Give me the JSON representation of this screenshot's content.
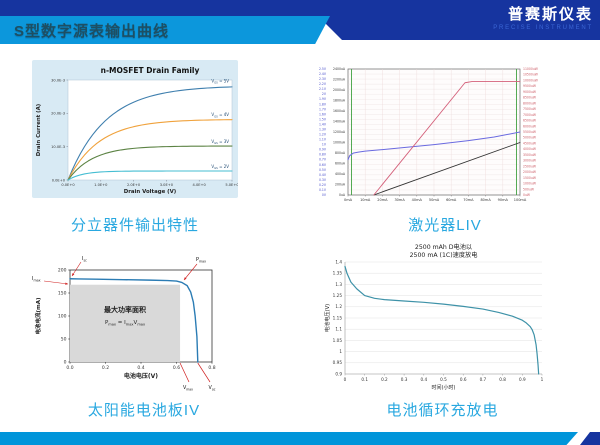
{
  "header": {
    "title": "S型数字源表输出曲线",
    "brand": "普赛斯仪表",
    "brand_sub": "PRECISE INSTRUMENT",
    "colors": {
      "navy": "#16349f",
      "band_blue": "#0c97dc",
      "footer_blue": "#0095da",
      "caption_blue": "#29a8e0"
    }
  },
  "captions": {
    "mosfet": "分立器件输出特性",
    "liv": "激光器LIV",
    "solar": "太阳能电池板IV",
    "battery": "电池循环充放电"
  },
  "chart_data": [
    {
      "id": "mosfet",
      "type": "line",
      "title": "n-MOSFET Drain Family",
      "xlabel": "Drain Voltage (V)",
      "ylabel": "Drain Current (A)",
      "xlim": [
        0,
        5
      ],
      "ylim": [
        0,
        0.03
      ],
      "bg": "#d8eaf4",
      "xticks": [
        [
          0,
          "0.0E+0"
        ],
        [
          1,
          "1.0E+0"
        ],
        [
          2,
          "2.0E+0"
        ],
        [
          3,
          "3.0E+0"
        ],
        [
          4,
          "4.0E+0"
        ],
        [
          5,
          "5.0E+0"
        ]
      ],
      "yticks": [
        [
          0,
          "0.0E+0"
        ],
        [
          0.01,
          "10.0E-3"
        ],
        [
          0.02,
          "20.0E-3"
        ],
        [
          0.03,
          "30.0E-3"
        ]
      ],
      "series": [
        {
          "label": [
            {
              "t": "V",
              "s": "GS"
            },
            {
              "t": " = 5V"
            }
          ],
          "color": "#3f7fae",
          "isat": 0.0283,
          "k": 1.15
        },
        {
          "label": [
            {
              "t": "V",
              "s": "GS"
            },
            {
              "t": " = 4V"
            }
          ],
          "color": "#f0a23c",
          "isat": 0.0182,
          "k": 0.95
        },
        {
          "label": [
            {
              "t": "V",
              "s": "GS"
            },
            {
              "t": " = 3V"
            }
          ],
          "color": "#5c8344",
          "isat": 0.0102,
          "k": 0.75
        },
        {
          "label": [
            {
              "t": "V",
              "s": "GS"
            },
            {
              "t": " = 2V"
            }
          ],
          "color": "#45bdd2",
          "isat": 0.0027,
          "k": 0.45
        }
      ],
      "label_color": "#1f4a73"
    },
    {
      "id": "liv",
      "type": "line",
      "xlim": [
        0,
        100
      ],
      "x_labels": [
        "0mA",
        "10mA",
        "20mA",
        "30mA",
        "40mA",
        "50mA",
        "60mA",
        "70mA",
        "80mA",
        "90mA",
        "100mA"
      ],
      "axes": {
        "voltage": {
          "range": [
            0,
            2.5
          ],
          "color": "#4c52cc",
          "labels": [
            "0V",
            "0.1V",
            "0.2V",
            "0.3V",
            "0.4V",
            "0.5V",
            "0.6V",
            "0.7V",
            "0.8V",
            "0.9V",
            "1V",
            "1.1V",
            "1.2V",
            "1.3V",
            "1.4V",
            "1.5V",
            "1.6V",
            "1.7V",
            "1.8V",
            "1.9V",
            "2V",
            "2.1V",
            "2.2V",
            "2.3V",
            "2.4V",
            "2.5V"
          ]
        },
        "current_uA": {
          "range": [
            0,
            2400
          ],
          "color": "#333333",
          "labels": [
            "0uA",
            "200uA",
            "400uA",
            "600uA",
            "800uA",
            "1000uA",
            "1200uA",
            "1400uA",
            "1600uA",
            "1800uA",
            "2000uA",
            "2200uA",
            "2400uA"
          ]
        },
        "power_uW": {
          "range": [
            0,
            11000
          ],
          "color": "#cc5c66",
          "labels": [
            "0uW",
            "500uW",
            "1000uW",
            "1500uW",
            "2000uW",
            "2500uW",
            "3000uW",
            "3500uW",
            "4000uW",
            "4500uW",
            "5000uW",
            "5500uW",
            "6000uW",
            "6500uW",
            "7000uW",
            "7500uW",
            "8000uW",
            "8500uW",
            "9000uW",
            "9500uW",
            "10000uW",
            "10500uW",
            "11000uW"
          ]
        }
      },
      "series": [
        {
          "name": "laser-voltage",
          "axis": "voltage",
          "color": "#6a6ae0",
          "points": [
            [
              0,
              0.7
            ],
            [
              1,
              0.78
            ],
            [
              3,
              0.83
            ],
            [
              6,
              0.85
            ],
            [
              10,
              0.87
            ],
            [
              20,
              0.9
            ],
            [
              35,
              0.95
            ],
            [
              50,
              1.0
            ],
            [
              70,
              1.08
            ],
            [
              85,
              1.15
            ],
            [
              100,
              1.25
            ]
          ]
        },
        {
          "name": "photodiode-current",
          "axis": "current_uA",
          "color": "#333333",
          "points": [
            [
              15,
              0
            ],
            [
              100,
              1000
            ]
          ]
        },
        {
          "name": "optical-power",
          "axis": "power_uW",
          "color": "#d4607a",
          "points": [
            [
              15,
              0
            ],
            [
              68,
              9800
            ],
            [
              72,
              9900
            ],
            [
              100,
              9900
            ]
          ]
        }
      ],
      "threshold_mA": 15,
      "cursors": [
        2,
        98
      ],
      "cursor_color": "#3fa03f"
    },
    {
      "id": "solar",
      "type": "line",
      "xlabel": "电池电压(V)",
      "ylabel": "电池电流(mA)",
      "xlim": [
        0,
        0.8
      ],
      "ylim": [
        0,
        200
      ],
      "xticks": [
        [
          0,
          "0.0"
        ],
        [
          0.2,
          "0.2"
        ],
        [
          0.4,
          "0.4"
        ],
        [
          0.6,
          "0.6"
        ],
        [
          0.8,
          "0.8"
        ]
      ],
      "yticks": [
        [
          0,
          "0"
        ],
        [
          50,
          "50"
        ],
        [
          100,
          "100"
        ],
        [
          150,
          "150"
        ],
        [
          200,
          "200"
        ]
      ],
      "curve": {
        "color": "#2b7cb4",
        "points": [
          [
            0,
            181
          ],
          [
            0.05,
            180.5
          ],
          [
            0.15,
            180
          ],
          [
            0.3,
            179
          ],
          [
            0.45,
            178
          ],
          [
            0.55,
            177
          ],
          [
            0.6,
            176
          ],
          [
            0.63,
            173
          ],
          [
            0.66,
            166
          ],
          [
            0.68,
            152
          ],
          [
            0.695,
            130
          ],
          [
            0.705,
            100
          ],
          [
            0.715,
            55
          ],
          [
            0.72,
            0
          ]
        ]
      },
      "power_area": {
        "vmax": 0.62,
        "imax": 168,
        "fill": "#d9d9d9",
        "label": "最大功率面积",
        "formula": [
          {
            "t": "P",
            "s": "max"
          },
          {
            "t": " = I",
            "s": "max"
          },
          {
            "t": "V",
            "s": "max"
          }
        ]
      },
      "annotations": {
        "isc": [
          {
            "t": "I",
            "s": "sc"
          }
        ],
        "imax": [
          {
            "t": "I",
            "s": "max"
          }
        ],
        "pmax": [
          {
            "t": "P",
            "s": "max"
          }
        ],
        "vmax": [
          {
            "t": "V",
            "s": "max"
          }
        ],
        "voc": [
          {
            "t": "V",
            "s": "oc"
          }
        ]
      },
      "annotation_color": "#d02020"
    },
    {
      "id": "battery",
      "type": "line",
      "title_lines": [
        "2500 mAh D电池以",
        "2500 mA (1C)速度放电"
      ],
      "xlabel": "时间(小时)",
      "ylabel": "电池电压(V)",
      "xlim": [
        0,
        1
      ],
      "ylim": [
        0.9,
        1.4
      ],
      "xticks": [
        [
          0,
          "0"
        ],
        [
          0.1,
          "0.1"
        ],
        [
          0.2,
          "0.2"
        ],
        [
          0.3,
          "0.3"
        ],
        [
          0.4,
          "0.4"
        ],
        [
          0.5,
          "0.5"
        ],
        [
          0.6,
          "0.6"
        ],
        [
          0.7,
          "0.7"
        ],
        [
          0.8,
          "0.8"
        ],
        [
          0.9,
          "0.9"
        ],
        [
          1,
          "1"
        ]
      ],
      "yticks": [
        [
          0.9,
          "0.9"
        ],
        [
          0.95,
          "0.95"
        ],
        [
          1,
          "1"
        ],
        [
          1.05,
          "1.05"
        ],
        [
          1.1,
          "1.1"
        ],
        [
          1.15,
          "1.15"
        ],
        [
          1.2,
          "1.2"
        ],
        [
          1.25,
          "1.25"
        ],
        [
          1.3,
          "1.3"
        ],
        [
          1.35,
          "1.35"
        ],
        [
          1.4,
          "1.4"
        ]
      ],
      "curve": {
        "color": "#3e92a8",
        "points": [
          [
            0,
            1.38
          ],
          [
            0.01,
            1.35
          ],
          [
            0.03,
            1.31
          ],
          [
            0.06,
            1.28
          ],
          [
            0.1,
            1.25
          ],
          [
            0.15,
            1.238
          ],
          [
            0.2,
            1.232
          ],
          [
            0.3,
            1.226
          ],
          [
            0.4,
            1.22
          ],
          [
            0.5,
            1.212
          ],
          [
            0.6,
            1.202
          ],
          [
            0.7,
            1.19
          ],
          [
            0.78,
            1.175
          ],
          [
            0.85,
            1.158
          ],
          [
            0.9,
            1.14
          ],
          [
            0.92,
            1.128
          ],
          [
            0.94,
            1.112
          ],
          [
            0.95,
            1.098
          ],
          [
            0.96,
            1.075
          ],
          [
            0.97,
            1.03
          ],
          [
            0.975,
            0.99
          ],
          [
            0.98,
            0.94
          ],
          [
            0.983,
            0.9
          ]
        ]
      }
    }
  ]
}
